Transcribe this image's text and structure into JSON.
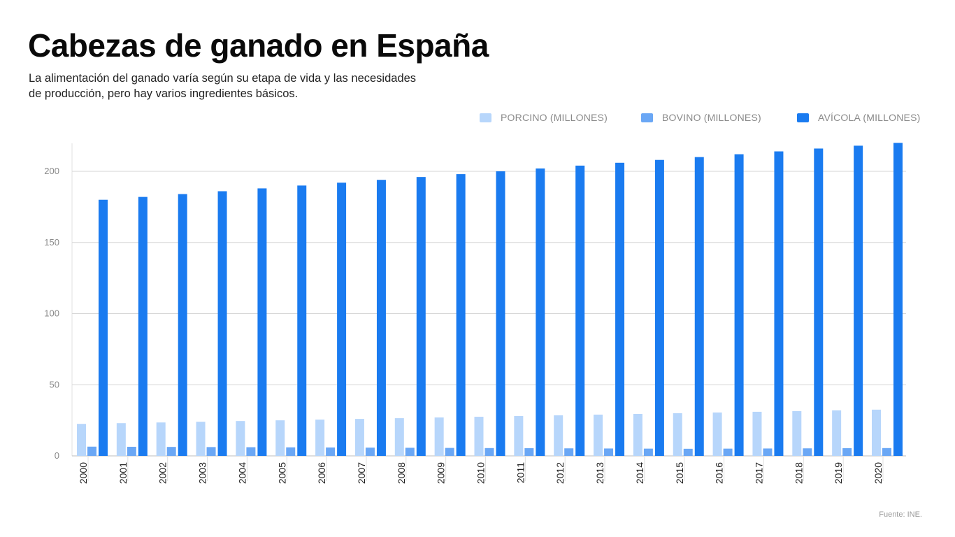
{
  "header": {
    "title": "Cabezas de ganado en España",
    "subtitle": "La alimentación del ganado varía según su etapa de vida y las necesidades de producción, pero hay varios ingredientes básicos."
  },
  "footer": {
    "source": "Fuente: INE."
  },
  "colors": {
    "porcino": "#b7d6fb",
    "bovino": "#6aa7f5",
    "avicola": "#1a7bf0",
    "grid": "#d6d6d6",
    "tick_text": "#8a8a8a"
  },
  "chart_data": {
    "type": "bar",
    "title": "Cabezas de ganado en España",
    "xlabel": "",
    "ylabel": "",
    "ylim": [
      0,
      220
    ],
    "yticks": [
      0,
      50,
      100,
      150,
      200
    ],
    "grid": true,
    "legend_position": "top-right",
    "categories": [
      "2000",
      "2001",
      "2002",
      "2003",
      "2004",
      "2005",
      "2006",
      "2007",
      "2008",
      "2009",
      "2010",
      "2011",
      "2012",
      "2013",
      "2014",
      "2015",
      "2016",
      "2017",
      "2018",
      "2019",
      "2020"
    ],
    "series": [
      {
        "name": "PORCINO (MILLONES)",
        "color": "#b7d6fb",
        "values": [
          22.5,
          23,
          23.5,
          24,
          24.5,
          25,
          25.5,
          26,
          26.5,
          27,
          27.5,
          28,
          28.5,
          29,
          29.5,
          30,
          30.5,
          31,
          31.5,
          32,
          32.5
        ]
      },
      {
        "name": "BOVINO (MILLONES)",
        "color": "#6aa7f5",
        "values": [
          6.5,
          6.4,
          6.3,
          6.2,
          6.1,
          6.0,
          5.9,
          5.8,
          5.7,
          5.6,
          5.5,
          5.4,
          5.3,
          5.2,
          5.1,
          5.0,
          5.1,
          5.2,
          5.3,
          5.4,
          5.5
        ]
      },
      {
        "name": "AVÍCOLA (MILLONES)",
        "color": "#1a7bf0",
        "values": [
          180,
          182,
          184,
          186,
          188,
          190,
          192,
          194,
          196,
          198,
          200,
          202,
          204,
          206,
          208,
          210,
          212,
          214,
          216,
          218,
          220
        ]
      }
    ]
  }
}
